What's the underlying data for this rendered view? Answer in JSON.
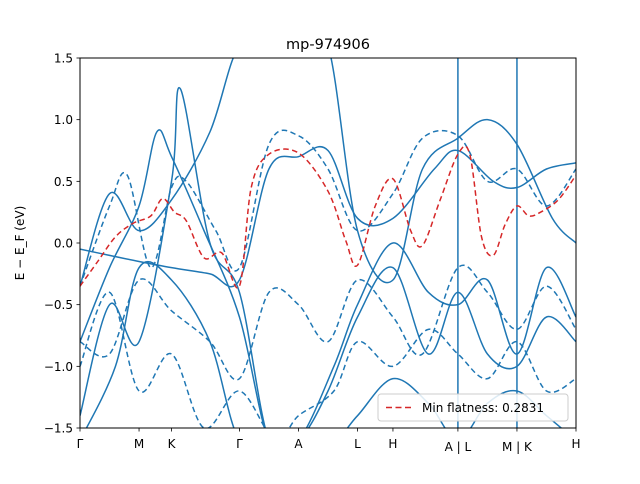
{
  "chart_data": {
    "type": "line",
    "title": "mp-974906",
    "xlabel": "",
    "ylabel": "E − E_F (eV)",
    "ylim": [
      -1.5,
      1.5
    ],
    "y_ticks": [
      -1.5,
      -1.0,
      -0.5,
      0.0,
      0.5,
      1.0,
      1.5
    ],
    "y_tick_labels": [
      "−1.5",
      "−1.0",
      "−0.5",
      "0.0",
      "0.5",
      "1.0",
      "1.5"
    ],
    "x_ticks": [
      0,
      1,
      1.55,
      2.7,
      3.7,
      4.7,
      5.3,
      6.4,
      7.4,
      8.4
    ],
    "x_tick_labels": [
      "Γ",
      "M",
      "K",
      "Γ",
      "A",
      "L",
      "H",
      "A | L",
      "M | K",
      "H"
    ],
    "xlim": [
      0,
      8.4
    ],
    "path_breaks": [
      6.4,
      7.4
    ],
    "legend": {
      "placement": "lower-right",
      "entries": [
        "Min flatness: 0.2831"
      ]
    },
    "grid": false,
    "colors": {
      "bands": "#1f77b4",
      "flat_band": "#d62728"
    },
    "flat_band": {
      "name": "Min flatness: 0.2831",
      "x": [
        0,
        0.3,
        0.6,
        0.9,
        1.2,
        1.4,
        1.6,
        1.8,
        2.1,
        2.4,
        2.7,
        2.9,
        3.2,
        3.7,
        4.2,
        4.5,
        4.7,
        5.0,
        5.3,
        5.6,
        5.8,
        6.1,
        6.4,
        6.6,
        6.8,
        7.0,
        7.2,
        7.4,
        7.6,
        7.8,
        8.1,
        8.4
      ],
      "y": [
        -0.35,
        -0.15,
        0.05,
        0.16,
        0.22,
        0.36,
        0.25,
        0.18,
        -0.12,
        -0.08,
        -0.35,
        0.45,
        0.72,
        0.73,
        0.42,
        0.02,
        -0.18,
        0.3,
        0.52,
        0.1,
        -0.02,
        0.35,
        0.72,
        0.72,
        0.05,
        -0.1,
        0.15,
        0.3,
        0.22,
        0.25,
        0.35,
        0.55
      ]
    },
    "series": [
      {
        "style": "solid",
        "x": [
          0,
          0.5,
          1.0,
          1.55,
          2.2,
          2.7,
          3.2,
          3.7,
          4.2,
          4.7,
          5.3,
          6.0,
          6.4,
          7.0,
          7.4,
          7.9,
          8.4
        ],
        "y": [
          -0.05,
          -0.1,
          -0.15,
          -0.2,
          -0.25,
          -0.3,
          0.6,
          0.7,
          0.75,
          0.2,
          0.2,
          0.6,
          0.75,
          0.5,
          0.45,
          0.6,
          0.65
        ]
      },
      {
        "style": "solid",
        "x": [
          0,
          0.5,
          1.0,
          1.55,
          2.2,
          2.7,
          3.3,
          3.7,
          4.2,
          4.7,
          5.3,
          5.8,
          6.4,
          6.9,
          7.4,
          8.0,
          8.4
        ],
        "y": [
          -0.35,
          0.4,
          0.1,
          0.35,
          0.9,
          1.6,
          1.6,
          1.6,
          1.6,
          0.1,
          -0.3,
          0.6,
          0.85,
          1.0,
          0.8,
          0.2,
          0.0
        ]
      },
      {
        "style": "solid",
        "x": [
          0,
          0.5,
          1.0,
          1.3,
          1.55,
          2.1,
          2.7,
          3.2,
          3.7,
          4.3,
          4.7,
          5.3,
          5.9,
          6.4,
          6.9,
          7.4,
          7.9,
          8.4
        ],
        "y": [
          -0.8,
          -0.2,
          0.3,
          0.9,
          0.7,
          0.1,
          -0.6,
          -1.6,
          -1.6,
          -1.0,
          -0.5,
          0.0,
          -0.4,
          -0.5,
          -0.3,
          -0.9,
          -0.2,
          -0.6
        ]
      },
      {
        "style": "solid",
        "x": [
          0,
          0.5,
          1.0,
          1.55,
          1.7,
          2.2,
          2.7,
          3.2,
          3.7,
          4.2,
          4.7,
          5.3,
          5.9,
          6.4,
          6.9,
          7.4,
          7.9,
          8.4
        ],
        "y": [
          -1.4,
          -0.5,
          -0.8,
          0.5,
          1.25,
          0.0,
          -0.4,
          -1.6,
          -1.6,
          -1.2,
          -0.6,
          -0.2,
          -0.9,
          -0.4,
          -0.9,
          -1.0,
          -0.6,
          -0.8
        ]
      },
      {
        "style": "solid",
        "x": [
          0,
          0.6,
          1.0,
          1.55,
          2.2,
          2.7,
          3.3,
          3.7,
          4.3,
          4.7,
          5.3,
          5.9,
          6.4,
          6.9,
          7.4,
          7.9,
          8.4
        ],
        "y": [
          -1.6,
          -1.0,
          -0.2,
          -0.3,
          -0.8,
          -1.6,
          -1.6,
          -1.6,
          -1.6,
          -1.4,
          -1.1,
          -1.3,
          -1.6,
          -1.3,
          -1.2,
          -1.4,
          -1.6
        ]
      },
      {
        "style": "dashed",
        "x": [
          0,
          0.5,
          0.8,
          1.2,
          1.55,
          1.8,
          2.3,
          2.7,
          3.2,
          3.7,
          4.2,
          4.7,
          5.3,
          5.8,
          6.4,
          6.9,
          7.4,
          7.9,
          8.4
        ],
        "y": [
          -0.35,
          0.3,
          0.55,
          -0.2,
          0.45,
          0.5,
          0.1,
          -0.2,
          0.8,
          0.87,
          0.6,
          0.1,
          0.4,
          0.85,
          0.87,
          0.5,
          0.6,
          0.3,
          0.6
        ]
      },
      {
        "style": "dashed",
        "x": [
          0,
          0.5,
          1.0,
          1.55,
          2.2,
          2.7,
          3.2,
          3.7,
          4.2,
          4.7,
          5.3,
          5.8,
          6.4,
          6.9,
          7.4,
          7.9,
          8.4
        ],
        "y": [
          -0.8,
          -0.9,
          -0.3,
          -0.55,
          -0.8,
          -1.1,
          -0.4,
          -0.5,
          -0.8,
          -0.3,
          -0.6,
          -0.9,
          -0.2,
          -0.4,
          -0.7,
          -0.35,
          -0.7
        ]
      },
      {
        "style": "dashed",
        "x": [
          0,
          0.5,
          1.0,
          1.55,
          2.1,
          2.7,
          3.3,
          3.7,
          4.3,
          4.7,
          5.3,
          5.9,
          6.4,
          6.9,
          7.4,
          7.9,
          8.4
        ],
        "y": [
          -1.0,
          -0.4,
          -1.2,
          -0.9,
          -1.5,
          -1.2,
          -1.6,
          -1.4,
          -1.2,
          -0.8,
          -1.0,
          -0.7,
          -0.9,
          -1.1,
          -0.8,
          -1.2,
          -1.1
        ]
      }
    ]
  }
}
